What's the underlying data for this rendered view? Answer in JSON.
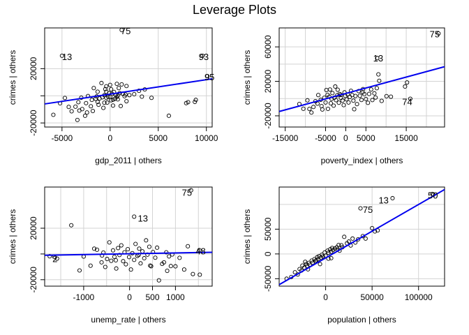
{
  "title": "Leverage Plots",
  "chart_data": [
    {
      "type": "scatter",
      "xlabel": "gdp_2011 | others",
      "ylabel": "crimes  | others",
      "xlim": [
        -6800,
        10600
      ],
      "ylim": [
        -23000,
        50000
      ],
      "xticks": [
        -5000,
        0,
        5000,
        10000
      ],
      "yticks": [
        -20000,
        0,
        20000
      ],
      "ytick_labels": [
        "-20000",
        "",
        "20000"
      ],
      "grid": true,
      "fit_line": [
        [
          -6800,
          -6000
        ],
        [
          10600,
          12500
        ]
      ],
      "labels": [
        {
          "text": "75",
          "x": 1100,
          "y": 48000
        },
        {
          "text": "13",
          "x": -5000,
          "y": 29000
        },
        {
          "text": "93",
          "x": 9200,
          "y": 29000
        },
        {
          "text": "95",
          "x": 9800,
          "y": 14000
        }
      ],
      "points": [
        [
          1200,
          48500
        ],
        [
          -5000,
          29500
        ],
        [
          9600,
          29500
        ],
        [
          10100,
          14500
        ],
        [
          -5900,
          -14000
        ],
        [
          -5200,
          -5500
        ],
        [
          -4700,
          -1600
        ],
        [
          -4300,
          -8200
        ],
        [
          -4000,
          -11400
        ],
        [
          -3600,
          -8000
        ],
        [
          -3400,
          -17800
        ],
        [
          -3300,
          -4700
        ],
        [
          -3200,
          -10900
        ],
        [
          -3000,
          -1400
        ],
        [
          -2900,
          -9800
        ],
        [
          -2600,
          -14700
        ],
        [
          -2500,
          -5400
        ],
        [
          -2400,
          -12300
        ],
        [
          -2300,
          -200
        ],
        [
          -2000,
          -7700
        ],
        [
          -1900,
          -3000
        ],
        [
          -1800,
          -11200
        ],
        [
          -1700,
          5700
        ],
        [
          -1500,
          -2200
        ],
        [
          -1400,
          -500
        ],
        [
          -1300,
          -4500
        ],
        [
          -1300,
          3000
        ],
        [
          -1200,
          -6600
        ],
        [
          -1100,
          -2000
        ],
        [
          -900,
          9400
        ],
        [
          -800,
          -1100
        ],
        [
          -700,
          -8900
        ],
        [
          -600,
          400
        ],
        [
          -600,
          -5100
        ],
        [
          -500,
          4900
        ],
        [
          -400,
          7000
        ],
        [
          -400,
          -1500
        ],
        [
          -300,
          -5000
        ],
        [
          -200,
          -800
        ],
        [
          -100,
          1900
        ],
        [
          0,
          -700
        ],
        [
          0,
          8000
        ],
        [
          100,
          -3300
        ],
        [
          100,
          4800
        ],
        [
          200,
          1400
        ],
        [
          300,
          -2900
        ],
        [
          400,
          2800
        ],
        [
          500,
          -2200
        ],
        [
          600,
          500
        ],
        [
          700,
          -900
        ],
        [
          700,
          8800
        ],
        [
          800,
          200
        ],
        [
          800,
          -2600
        ],
        [
          900,
          5700
        ],
        [
          1000,
          2000
        ],
        [
          1100,
          -7500
        ],
        [
          1200,
          8400
        ],
        [
          1300,
          1600
        ],
        [
          1500,
          -300
        ],
        [
          1600,
          900
        ],
        [
          1700,
          7200
        ],
        [
          1700,
          -4000
        ],
        [
          2000,
          500
        ],
        [
          2500,
          1200
        ],
        [
          3000,
          3700
        ],
        [
          3300,
          -600
        ],
        [
          3600,
          4700
        ],
        [
          4300,
          -1500
        ],
        [
          6100,
          -14700
        ],
        [
          7900,
          -5400
        ],
        [
          8100,
          -4700
        ],
        [
          8800,
          -4500
        ],
        [
          8900,
          -3000
        ],
        [
          -400,
          3000
        ],
        [
          300,
          -7200
        ]
      ]
    },
    {
      "type": "scatter",
      "xlabel": "poverty_index | others",
      "ylabel": "crimes  | others",
      "xlim": [
        -16500,
        24500
      ],
      "ylim": [
        -33000,
        82000
      ],
      "xticks": [
        -15000,
        -5000,
        0,
        5000,
        15000
      ],
      "xtick_labels": [
        "-15000",
        "-5000",
        "0",
        "5000",
        "15000"
      ],
      "yticks": [
        -20000,
        20000,
        60000
      ],
      "grid": true,
      "grid_x": [
        -15000,
        -10000,
        -5000,
        0,
        5000,
        10000,
        15000,
        20000
      ],
      "grid_y": [
        -20000,
        0,
        20000,
        40000,
        60000
      ],
      "fit_line": [
        [
          -16500,
          -15000
        ],
        [
          24500,
          37000
        ]
      ],
      "labels": [
        {
          "text": "75",
          "x": 20800,
          "y": 75000
        },
        {
          "text": "13",
          "x": 6800,
          "y": 47000
        },
        {
          "text": "74",
          "x": 14000,
          "y": -3500
        }
      ],
      "points": [
        [
          23000,
          75500
        ],
        [
          7800,
          47000
        ],
        [
          16000,
          -200
        ],
        [
          -11500,
          -6300
        ],
        [
          -10500,
          -11800
        ],
        [
          -9500,
          -2000
        ],
        [
          -8500,
          -16200
        ],
        [
          -8000,
          -9700
        ],
        [
          -7500,
          -3100
        ],
        [
          -7000,
          -5800
        ],
        [
          -6800,
          4100
        ],
        [
          -6200,
          -1400
        ],
        [
          -6000,
          -8700
        ],
        [
          -5800,
          -12600
        ],
        [
          -5300,
          1000
        ],
        [
          -5000,
          -4500
        ],
        [
          -4800,
          9900
        ],
        [
          -4500,
          4300
        ],
        [
          -4400,
          -11900
        ],
        [
          -4100,
          2200
        ],
        [
          -3900,
          10500
        ],
        [
          -3700,
          -5500
        ],
        [
          -3500,
          -300
        ],
        [
          -3300,
          6400
        ],
        [
          -3000,
          -8200
        ],
        [
          -2800,
          1100
        ],
        [
          -2600,
          14000
        ],
        [
          -2400,
          -1800
        ],
        [
          -2100,
          3900
        ],
        [
          -2000,
          10300
        ],
        [
          -1700,
          -4800
        ],
        [
          -1500,
          5200
        ],
        [
          -1200,
          700
        ],
        [
          -800,
          -2300
        ],
        [
          -500,
          -7600
        ],
        [
          -300,
          7200
        ],
        [
          -100,
          3100
        ],
        [
          200,
          -800
        ],
        [
          500,
          4800
        ],
        [
          700,
          -4500
        ],
        [
          1000,
          1900
        ],
        [
          1300,
          9000
        ],
        [
          1600,
          4100
        ],
        [
          1900,
          -2400
        ],
        [
          2100,
          -12300
        ],
        [
          2400,
          3000
        ],
        [
          2800,
          -6400
        ],
        [
          3200,
          8700
        ],
        [
          3500,
          3300
        ],
        [
          3900,
          -1600
        ],
        [
          4300,
          11000
        ],
        [
          4600,
          5200
        ],
        [
          5000,
          -500
        ],
        [
          5500,
          -4900
        ],
        [
          5800,
          5400
        ],
        [
          6300,
          10600
        ],
        [
          6600,
          -1700
        ],
        [
          7100,
          6100
        ],
        [
          7400,
          1200
        ],
        [
          7700,
          12100
        ],
        [
          8100,
          28100
        ],
        [
          8300,
          20600
        ],
        [
          8900,
          -2700
        ],
        [
          10100,
          2800
        ],
        [
          11200,
          2200
        ],
        [
          14700,
          14000
        ],
        [
          15200,
          18700
        ],
        [
          -1200,
          4200
        ],
        [
          4200,
          7200
        ],
        [
          -9000,
          -12000
        ]
      ]
    },
    {
      "type": "scatter",
      "xlabel": "unemp_rate | others",
      "ylabel": "crimes  | others",
      "xlim": [
        -1850,
        1800
      ],
      "ylim": [
        -25000,
        52000
      ],
      "xticks": [
        -1000,
        0,
        500,
        1000
      ],
      "yticks": [
        -20000,
        0,
        20000
      ],
      "ytick_labels": [
        "-20000",
        "",
        "20000"
      ],
      "grid": true,
      "grid_x": [
        -1500,
        -1000,
        -500,
        0,
        500,
        1000,
        1500
      ],
      "fit_line": [
        [
          -1850,
          -1000
        ],
        [
          1800,
          1300
        ]
      ],
      "labels": [
        {
          "text": "75",
          "x": 1140,
          "y": 48000
        },
        {
          "text": "13",
          "x": 180,
          "y": 28000
        },
        {
          "text": "48",
          "x": 1440,
          "y": 2500
        },
        {
          "text": "2",
          "x": -1680,
          "y": -3500
        }
      ],
      "points": [
        [
          1340,
          49500
        ],
        [
          100,
          29000
        ],
        [
          1520,
          3000
        ],
        [
          -1740,
          -1800
        ],
        [
          -1640,
          -2200
        ],
        [
          -1580,
          -3600
        ],
        [
          -1270,
          22300
        ],
        [
          -1090,
          -12800
        ],
        [
          -850,
          -9100
        ],
        [
          -770,
          4100
        ],
        [
          -710,
          3300
        ],
        [
          -610,
          -6500
        ],
        [
          -570,
          1100
        ],
        [
          -530,
          -10100
        ],
        [
          -490,
          -3900
        ],
        [
          -440,
          9000
        ],
        [
          -400,
          -5300
        ],
        [
          -360,
          2800
        ],
        [
          -330,
          -2200
        ],
        [
          -290,
          -11300
        ],
        [
          -250,
          4600
        ],
        [
          -220,
          -800
        ],
        [
          -180,
          6700
        ],
        [
          -140,
          -5600
        ],
        [
          -110,
          1300
        ],
        [
          -80,
          -8000
        ],
        [
          -40,
          3700
        ],
        [
          -10,
          -2400
        ],
        [
          30,
          -12100
        ],
        [
          60,
          600
        ],
        [
          100,
          -4600
        ],
        [
          130,
          7800
        ],
        [
          170,
          -1500
        ],
        [
          210,
          4100
        ],
        [
          240,
          -7300
        ],
        [
          280,
          2000
        ],
        [
          320,
          -3300
        ],
        [
          360,
          10600
        ],
        [
          390,
          -500
        ],
        [
          430,
          5600
        ],
        [
          470,
          -9500
        ],
        [
          510,
          1500
        ],
        [
          560,
          -2900
        ],
        [
          600,
          4900
        ],
        [
          640,
          -20500
        ],
        [
          710,
          -7700
        ],
        [
          750,
          -6500
        ],
        [
          800,
          1300
        ],
        [
          820,
          -13100
        ],
        [
          860,
          -1900
        ],
        [
          930,
          -400
        ],
        [
          1000,
          -9600
        ],
        [
          1090,
          -3000
        ],
        [
          1190,
          -12100
        ],
        [
          1270,
          6000
        ],
        [
          1530,
          -16100
        ],
        [
          1380,
          -15600
        ],
        [
          -300,
          -4900
        ],
        [
          200,
          -700
        ],
        [
          -600,
          -1200
        ],
        [
          900,
          -9400
        ],
        [
          -1000,
          -2000
        ],
        [
          450,
          -9000
        ]
      ]
    },
    {
      "type": "scatter",
      "xlabel": "population | others",
      "ylabel": "crimes  | others",
      "xlim": [
        -50000,
        128000
      ],
      "ylim": [
        -65000,
        135000
      ],
      "xticks": [
        0,
        50000,
        100000
      ],
      "yticks": [
        -50000,
        0,
        50000
      ],
      "grid": true,
      "grid_x": [
        -50000,
        0,
        50000,
        100000
      ],
      "grid_y": [
        -50000,
        0,
        50000,
        100000
      ],
      "fit_line": [
        [
          -50000,
          -62000
        ],
        [
          128000,
          130000
        ]
      ],
      "labels": [
        {
          "text": "75",
          "x": 40000,
          "y": 90000
        },
        {
          "text": "13",
          "x": 57000,
          "y": 109000
        },
        {
          "text": "50",
          "x": 110000,
          "y": 119000
        }
      ],
      "points": [
        [
          116000,
          119500
        ],
        [
          72000,
          112500
        ],
        [
          37500,
          92000
        ],
        [
          -42000,
          -50000
        ],
        [
          -37000,
          -46500
        ],
        [
          -33000,
          -37000
        ],
        [
          -30000,
          -41500
        ],
        [
          -28000,
          -30500
        ],
        [
          -26000,
          -33500
        ],
        [
          -25000,
          -23500
        ],
        [
          -23000,
          -27500
        ],
        [
          -21000,
          -20500
        ],
        [
          -20000,
          -24500
        ],
        [
          -18000,
          -18000
        ],
        [
          -17000,
          -21500
        ],
        [
          -15000,
          -13500
        ],
        [
          -14000,
          -17500
        ],
        [
          -12000,
          -10500
        ],
        [
          -11000,
          -14500
        ],
        [
          -9000,
          -6500
        ],
        [
          -8000,
          -10500
        ],
        [
          -7000,
          -4500
        ],
        [
          -5000,
          -7500
        ],
        [
          -4000,
          -1500
        ],
        [
          -3000,
          -5000
        ],
        [
          -1000,
          3000
        ],
        [
          0,
          -3500
        ],
        [
          2000,
          6500
        ],
        [
          3000,
          2500
        ],
        [
          5000,
          9500
        ],
        [
          6000,
          4500
        ],
        [
          7000,
          12000
        ],
        [
          8000,
          8000
        ],
        [
          10000,
          11000
        ],
        [
          12000,
          13500
        ],
        [
          13000,
          9000
        ],
        [
          15000,
          6500
        ],
        [
          17000,
          17500
        ],
        [
          18000,
          13500
        ],
        [
          20000,
          34500
        ],
        [
          23000,
          21500
        ],
        [
          25000,
          25000
        ],
        [
          27000,
          17000
        ],
        [
          29000,
          31000
        ],
        [
          32000,
          23000
        ],
        [
          35000,
          29500
        ],
        [
          40000,
          36000
        ],
        [
          43000,
          31000
        ],
        [
          50000,
          52000
        ],
        [
          53000,
          45500
        ],
        [
          56000,
          47500
        ],
        [
          115000,
          121000
        ],
        [
          -22000,
          -16000
        ],
        [
          -19000,
          -31000
        ],
        [
          6000,
          -8500
        ],
        [
          -10000,
          -12500
        ],
        [
          14000,
          18000
        ],
        [
          -6000,
          -20500
        ],
        [
          3000,
          -9500
        ]
      ]
    }
  ]
}
